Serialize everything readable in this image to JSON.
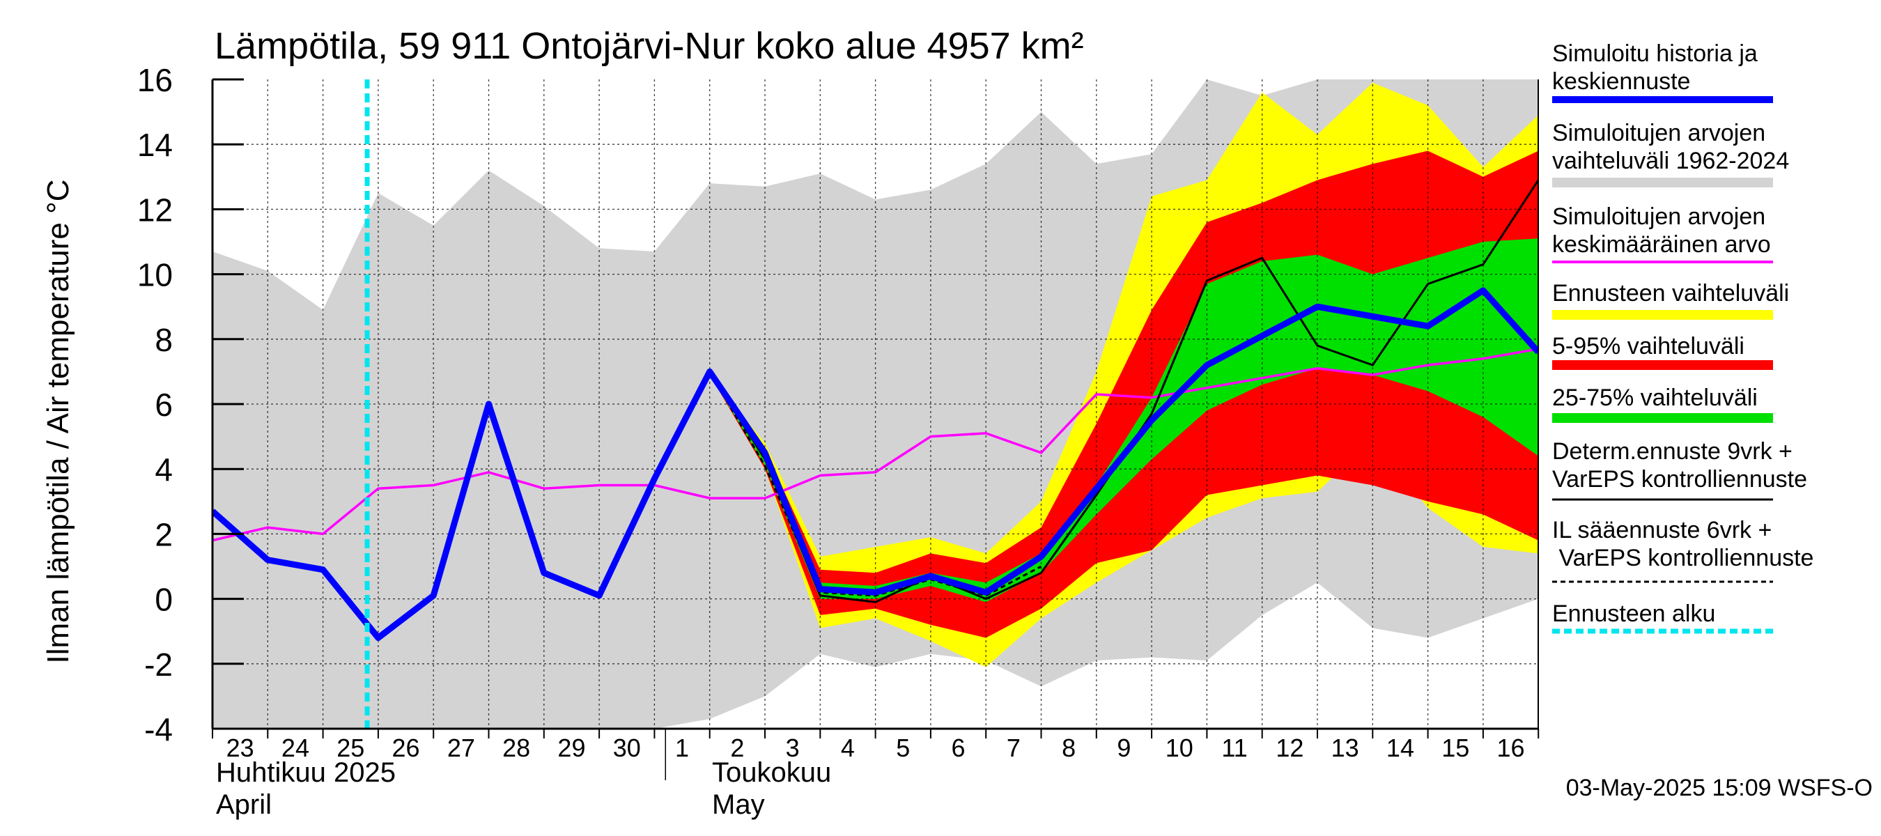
{
  "chart_data": {
    "type": "line",
    "title": "Lämpötila, 59 911 Ontojärvi-Nur koko alue 4957 km²",
    "ylabel": "Ilman lämpötila / Air temperature   °C",
    "ylim": [
      -4,
      16
    ],
    "yticks": [
      -4,
      -2,
      0,
      2,
      4,
      6,
      8,
      10,
      12,
      14,
      16
    ],
    "grid": true,
    "legend_position": "right",
    "x_tick_labels": [
      "23",
      "24",
      "25",
      "26",
      "27",
      "28",
      "29",
      "30",
      "1",
      "2",
      "3",
      "4",
      "5",
      "6",
      "7",
      "8",
      "9",
      "10",
      "11",
      "12",
      "13",
      "14",
      "15",
      "16"
    ],
    "month_labels": {
      "april_fi": "Huhtikuu  2025",
      "april_en": "April",
      "may_fi": "Toukokuu",
      "may_en": "May"
    },
    "forecast_start_day": 2.8,
    "footer": "03-May-2025 15:09 WSFS-O",
    "legend": [
      {
        "key": "median",
        "text": "Simuloitu historia ja\nkeskiennuste",
        "color": "#0000ff"
      },
      {
        "key": "hist_range",
        "text": "Simuloitujen arvojen\nvaihteluväli 1962-2024",
        "color": "#d3d3d3"
      },
      {
        "key": "hist_mean",
        "text": "Simuloitujen arvojen\nkeskimääräinen arvo",
        "color": "#ff00ff"
      },
      {
        "key": "ens_range",
        "text": "Ennusteen vaihteluväli",
        "color": "#ffff00"
      },
      {
        "key": "p5_95",
        "text": "5-95% vaihteluväli",
        "color": "#ff0000"
      },
      {
        "key": "p25_75",
        "text": "25-75% vaihteluväli",
        "color": "#00e000"
      },
      {
        "key": "determ",
        "text": "Determ.ennuste 9vrk +\nVarEPS kontrolliennuste",
        "color": "#000000"
      },
      {
        "key": "il",
        "text": "IL sääennuste 6vrk  +\n  VarEPS kontrolliennuste",
        "color": "#000000"
      },
      {
        "key": "start",
        "text": "Ennusteen alku",
        "color": "#00e5ee"
      }
    ],
    "series": {
      "hist_range": {
        "x": [
          0,
          1,
          2,
          3,
          4,
          5,
          6,
          7,
          8,
          9,
          10,
          11,
          12,
          13,
          14,
          15,
          16,
          17,
          18,
          19,
          20,
          21,
          22,
          23,
          24
        ],
        "upper": [
          10.7,
          10.1,
          8.9,
          12.5,
          11.5,
          13.2,
          12.1,
          10.8,
          10.7,
          12.8,
          12.7,
          13.1,
          12.3,
          12.6,
          13.4,
          15.0,
          13.4,
          13.7,
          16.0,
          15.5,
          16.0,
          16.0,
          16.0,
          16.0,
          16.0
        ],
        "lower": [
          -4,
          -4,
          -4,
          -4,
          -4,
          -4,
          -4,
          -4,
          -4,
          -3.7,
          -3.0,
          -1.7,
          -2.1,
          -1.7,
          -1.9,
          -2.7,
          -1.9,
          -1.8,
          -1.9,
          -0.5,
          0.5,
          -0.9,
          -1.2,
          -0.6,
          0.0
        ]
      },
      "ens_range": {
        "x": [
          9,
          10,
          11,
          12,
          13,
          14,
          15,
          16,
          17,
          18,
          19,
          20,
          21,
          22,
          23,
          24
        ],
        "upper": [
          6.9,
          4.8,
          1.3,
          1.6,
          1.9,
          1.4,
          3.0,
          7.0,
          12.4,
          12.9,
          15.6,
          14.3,
          15.9,
          15.2,
          13.3,
          14.9
        ],
        "lower": [
          6.9,
          4.0,
          -0.9,
          -0.6,
          -1.3,
          -2.1,
          -0.6,
          0.5,
          1.5,
          2.5,
          3.1,
          3.3,
          4.9,
          2.8,
          1.6,
          1.4
        ]
      },
      "p5_95": {
        "x": [
          9,
          10,
          11,
          12,
          13,
          14,
          15,
          16,
          17,
          18,
          19,
          20,
          21,
          22,
          23,
          24
        ],
        "upper": [
          6.9,
          4.6,
          0.9,
          0.8,
          1.4,
          1.1,
          2.2,
          5.4,
          8.9,
          11.6,
          12.2,
          12.9,
          13.4,
          13.8,
          13.0,
          13.8
        ],
        "lower": [
          6.9,
          4.0,
          -0.5,
          -0.3,
          -0.8,
          -1.2,
          -0.3,
          1.1,
          1.5,
          3.2,
          3.5,
          3.8,
          3.5,
          3.0,
          2.6,
          1.8
        ]
      },
      "p25_75": {
        "x": [
          9,
          10,
          11,
          12,
          13,
          14,
          15,
          16,
          17,
          18,
          19,
          20,
          21,
          22,
          23,
          24
        ],
        "upper": [
          6.9,
          4.3,
          0.5,
          0.4,
          0.8,
          0.5,
          1.4,
          3.5,
          6.2,
          9.7,
          10.4,
          10.6,
          10.0,
          10.5,
          11.0,
          11.1
        ],
        "lower": [
          6.9,
          4.1,
          0.0,
          0.0,
          0.4,
          -0.1,
          0.8,
          2.6,
          4.3,
          5.8,
          6.6,
          7.1,
          6.9,
          6.4,
          5.6,
          4.4
        ]
      },
      "hist_mean": {
        "x": [
          0,
          1,
          2,
          3,
          4,
          5,
          6,
          7,
          8,
          9,
          10,
          11,
          12,
          13,
          14,
          15,
          16,
          17,
          18,
          19,
          20,
          21,
          22,
          23,
          24
        ],
        "y": [
          1.8,
          2.2,
          2.0,
          3.4,
          3.5,
          3.9,
          3.4,
          3.5,
          3.5,
          3.1,
          3.1,
          3.8,
          3.9,
          5.0,
          5.1,
          4.5,
          6.3,
          6.2,
          6.5,
          6.8,
          7.1,
          6.9,
          7.2,
          7.4,
          7.7
        ]
      },
      "median": {
        "x": [
          0,
          1,
          2,
          3,
          4,
          5,
          6,
          7,
          8,
          9,
          10,
          11,
          12,
          13,
          14,
          15,
          16,
          17,
          18,
          19,
          20,
          21,
          22,
          23,
          24
        ],
        "y": [
          2.7,
          1.2,
          0.9,
          -1.2,
          0.1,
          6.0,
          0.8,
          0.1,
          3.7,
          7.0,
          4.5,
          0.3,
          0.2,
          0.7,
          0.2,
          1.3,
          3.4,
          5.5,
          7.2,
          8.1,
          9.0,
          8.7,
          8.4,
          9.5,
          7.6
        ]
      },
      "determ": {
        "x": [
          9,
          10,
          11,
          12,
          13,
          14,
          15,
          16,
          17,
          18,
          19,
          20,
          21,
          22,
          23,
          24
        ],
        "y": [
          7.0,
          4.3,
          0.1,
          -0.1,
          0.7,
          0.0,
          0.8,
          3.2,
          5.7,
          9.8,
          10.5,
          7.8,
          7.2,
          9.7,
          10.3,
          12.9
        ]
      },
      "il": {
        "x": [
          9,
          10,
          11,
          12,
          13,
          14,
          15
        ],
        "y": [
          7.0,
          4.1,
          0.2,
          0.1,
          0.6,
          0.1,
          1.0
        ]
      }
    }
  }
}
